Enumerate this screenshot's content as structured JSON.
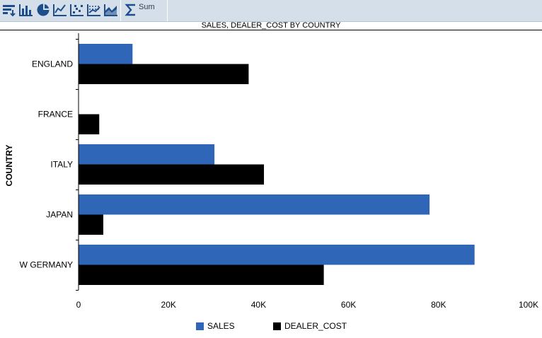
{
  "toolbar": {
    "icons": [
      "sort-icon",
      "bar-chart-icon",
      "pie-chart-icon",
      "line-chart-icon",
      "scatter-chart-icon",
      "trend-chart-icon",
      "area-chart-icon",
      "sum-icon"
    ],
    "sum_label": "Sum",
    "icon_color": "#1f4e8c"
  },
  "chart_data": {
    "type": "bar",
    "orientation": "horizontal",
    "title": "SALES, DEALER_COST BY COUNTRY",
    "xlabel": "",
    "ylabel": "COUNTRY",
    "categories": [
      "ENGLAND",
      "FRANCE",
      "ITALY",
      "JAPAN",
      "W GERMANY"
    ],
    "series": [
      {
        "name": "SALES",
        "color": "#2f66b8",
        "values": [
          12000,
          0,
          30200,
          78000,
          88000
        ]
      },
      {
        "name": "DEALER_COST",
        "color": "#000000",
        "values": [
          37800,
          4600,
          41200,
          5500,
          54500
        ]
      }
    ],
    "xlim": [
      0,
      100000
    ],
    "xticks": [
      "0",
      "20K",
      "40K",
      "60K",
      "80K",
      "100K"
    ],
    "grid": false,
    "legend_position": "bottom"
  }
}
